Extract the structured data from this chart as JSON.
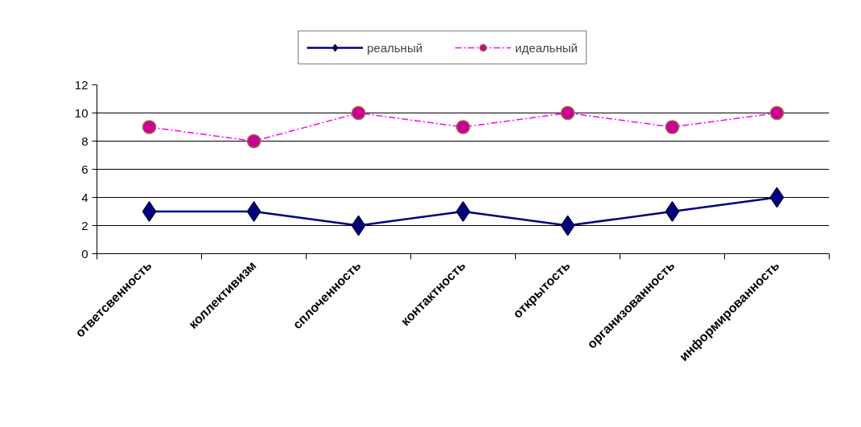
{
  "chart_data": {
    "type": "line",
    "categories": [
      "ответсвенность",
      "коллективизм",
      "сплоченность",
      "контактность",
      "открытость",
      "организованность",
      "информированность"
    ],
    "series": [
      {
        "name": "реальный",
        "color": "#000080",
        "values": [
          3,
          3,
          2,
          3,
          2,
          3,
          4
        ],
        "marker": "diamond",
        "line_style": "solid"
      },
      {
        "name": "идеальный",
        "color": "#ff00ff",
        "values": [
          9,
          8,
          10,
          9,
          10,
          9,
          10
        ],
        "marker": "circle",
        "line_style": "dashed"
      }
    ],
    "ylim": [
      0,
      12
    ],
    "yticks": [
      0,
      2,
      4,
      6,
      8,
      10,
      12
    ],
    "grid": "y",
    "legend": "top"
  }
}
